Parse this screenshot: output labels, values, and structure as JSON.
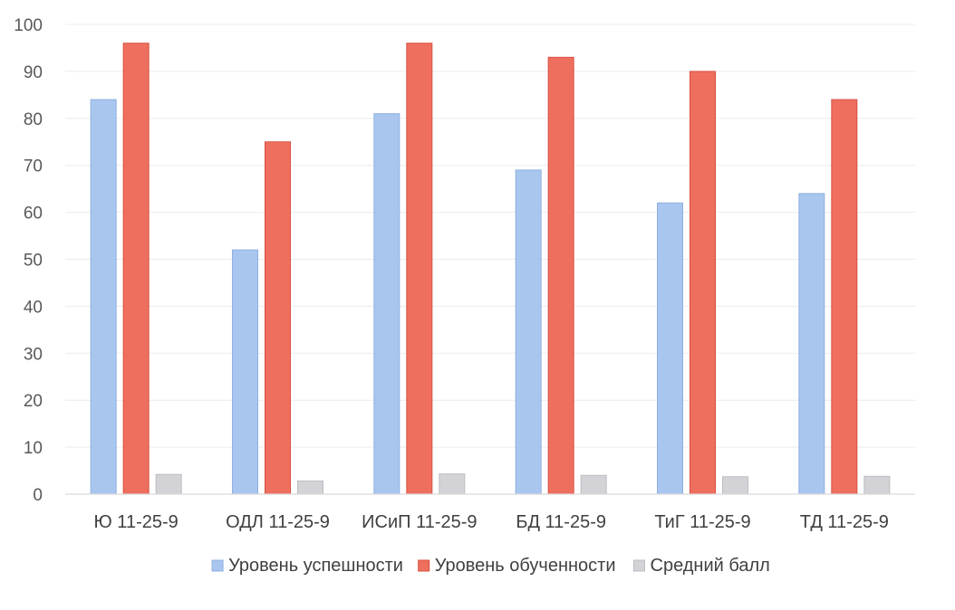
{
  "chart_data": {
    "type": "bar",
    "categories": [
      "Ю 11-25-9",
      "ОДЛ 11-25-9",
      "ИСиП 11-25-9",
      "БД 11-25-9",
      "ТиГ 11-25-9",
      "ТД 11-25-9"
    ],
    "series": [
      {
        "name": "Уровень успешности",
        "color": "#a9c6ef",
        "edge": "#8fb0e0",
        "values": [
          84,
          52,
          81,
          69,
          62,
          64
        ]
      },
      {
        "name": "Уровень обученности",
        "color": "#ef6f5f",
        "edge": "#d9503f",
        "values": [
          96,
          75,
          96,
          93,
          90,
          84
        ]
      },
      {
        "name": "Средний балл",
        "color": "#d3d3d7",
        "edge": "#bcbcc2",
        "values": [
          4.2,
          2.8,
          4.3,
          4.0,
          3.7,
          3.8
        ]
      }
    ],
    "title": "",
    "xlabel": "",
    "ylabel": "",
    "ylim": [
      0,
      100
    ],
    "yticks": [
      0,
      10,
      20,
      30,
      40,
      50,
      60,
      70,
      80,
      90,
      100
    ],
    "grid": true,
    "legend": "bottom"
  }
}
